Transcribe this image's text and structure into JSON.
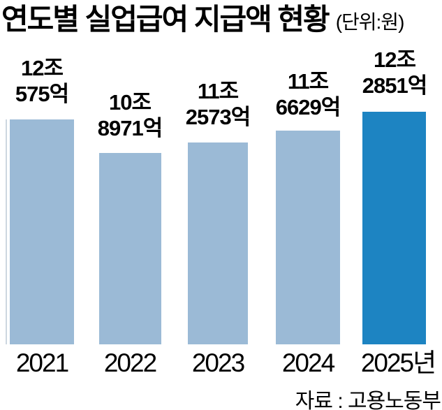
{
  "header": {
    "title": "연도별 실업급여 지급액 현황",
    "unit": "(단위:원)"
  },
  "source": "자료 : 고용노동부",
  "colors": {
    "bar": "#9bbad6",
    "highlight": "#1d84c2",
    "axis": "#cdd7e0",
    "text": "#000000"
  },
  "bars": [
    {
      "year": "2021",
      "label_line1": "12조",
      "label_line2": "575억",
      "value_100m_won": 120575,
      "highlight": false
    },
    {
      "year": "2022",
      "label_line1": "10조",
      "label_line2": "8971억",
      "value_100m_won": 108971,
      "highlight": false
    },
    {
      "year": "2023",
      "label_line1": "11조",
      "label_line2": "2573억",
      "value_100m_won": 112573,
      "highlight": false
    },
    {
      "year": "2024",
      "label_line1": "11조",
      "label_line2": "6629억",
      "value_100m_won": 116629,
      "highlight": false
    },
    {
      "year": "2025년",
      "label_line1": "12조",
      "label_line2": "2851억",
      "value_100m_won": 122851,
      "highlight": true
    }
  ],
  "chart_data": {
    "type": "bar",
    "title": "연도별 실업급여 지급액 현황",
    "unit_label": "(단위:원)",
    "categories": [
      "2021",
      "2022",
      "2023",
      "2024",
      "2025년"
    ],
    "values": [
      120575,
      108971,
      112573,
      116629,
      122851
    ],
    "value_unit": "억원 (100 million KRW)",
    "data_labels": [
      "12조 575억",
      "10조 8971억",
      "11조 2573억",
      "11조 6629억",
      "12조 2851억"
    ],
    "highlight_index": 4,
    "legend": "none",
    "grid": false,
    "axis_note": "single light-gray vertical axis line at left; bars use exaggerated non-zero baseline",
    "source": "자료 : 고용노동부"
  }
}
